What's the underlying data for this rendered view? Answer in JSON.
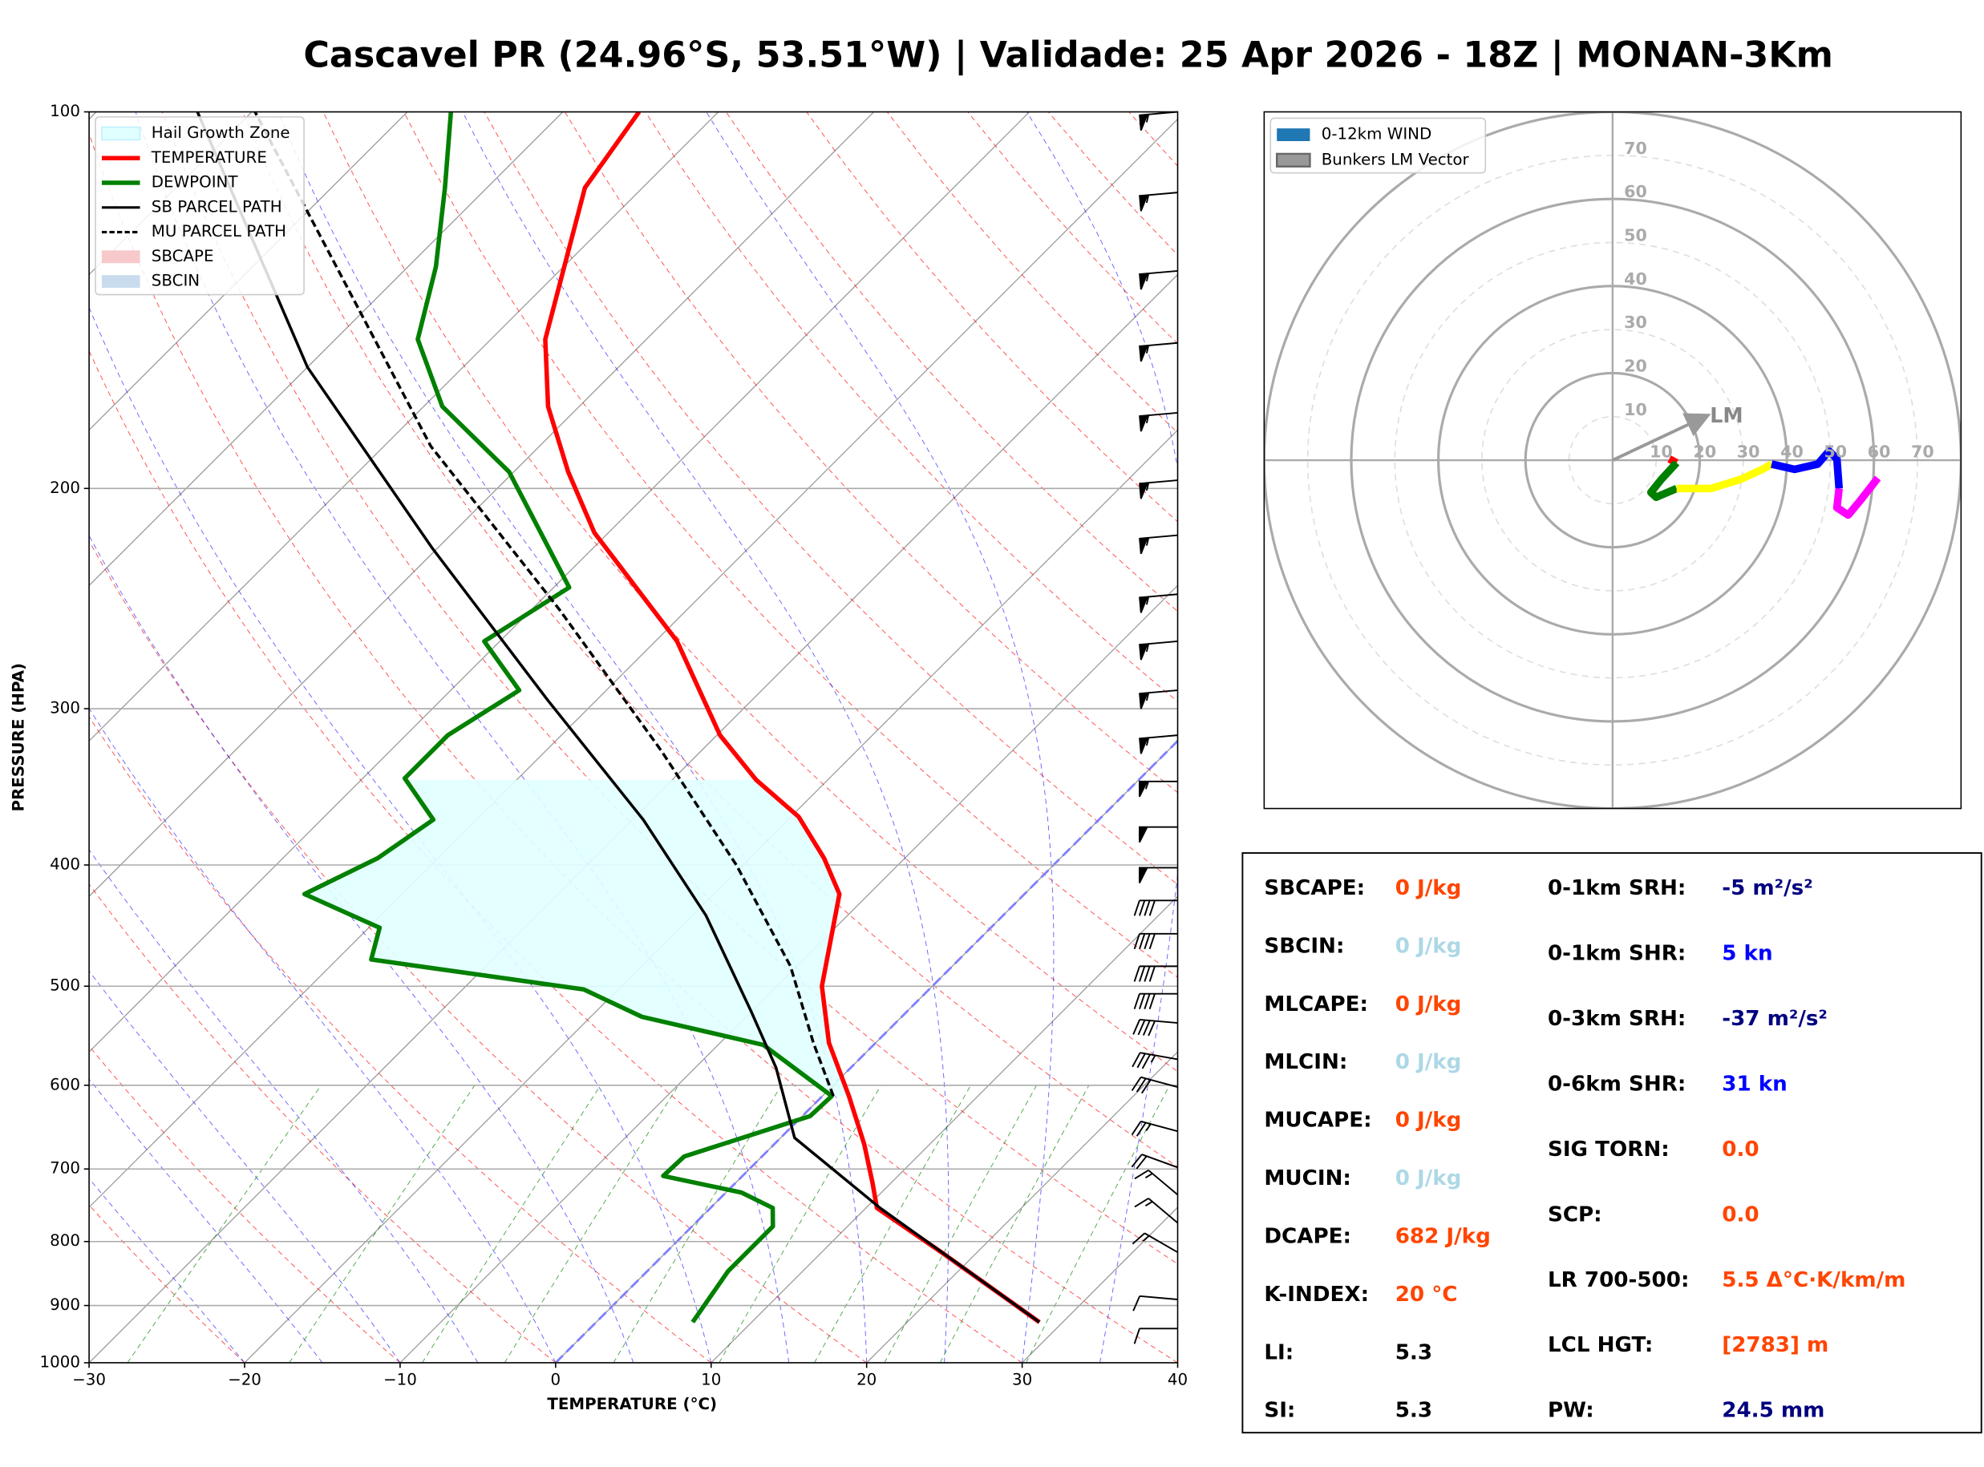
{
  "title": "Cascavel PR (24.96°S, 53.51°W) | Validade: 25 Apr 2026 - 18Z | MONAN-3Km",
  "chart_data": [
    {
      "type": "skewt",
      "xlabel": "TEMPERATURE (°C)",
      "ylabel": "PRESSURE (HPA)",
      "xlim": [
        -30,
        40
      ],
      "ylim": [
        1000,
        100
      ],
      "log_y": true,
      "grid": true,
      "legend": "upper left",
      "xticks": [
        {
          "value": -30,
          "label": "−30"
        },
        {
          "value": -20,
          "label": "−20"
        },
        {
          "value": -10,
          "label": "−10"
        },
        0,
        10,
        20,
        30,
        40
      ],
      "yticks": [
        100,
        200,
        300,
        400,
        500,
        600,
        700,
        800,
        900,
        1000
      ],
      "fills": [
        {
          "name": "Hail Growth Zone",
          "color": "#e0ffff",
          "p_range": [
            612,
            342
          ]
        },
        {
          "name": "SBCAPE",
          "color": "#f7c9cb"
        },
        {
          "name": "SBCIN",
          "color": "#c9dcee"
        }
      ],
      "series": [
        {
          "name": "TEMPERATURE",
          "color": "#ff0000",
          "style": "solid",
          "pressure": [
            928,
            816,
            752,
            718,
            669,
            612,
            555,
            500,
            422,
            395,
            366,
            342,
            315,
            265,
            217,
            194,
            172,
            152,
            115,
            100
          ],
          "values": [
            28.5,
            17.7,
            10.7,
            8.8,
            5.8,
            1.7,
            -3.0,
            -7.1,
            -11.9,
            -15.2,
            -19.5,
            -24.6,
            -29.8,
            -38.6,
            -50.9,
            -56.5,
            -62.0,
            -66.5,
            -73.7,
            -75.1
          ]
        },
        {
          "name": "DEWPOINT",
          "color": "#008000",
          "style": "solid",
          "pressure": [
            928,
            845,
            778,
            752,
            731,
            709,
            684,
            635,
            612,
            557,
            529,
            503,
            476,
            449,
            422,
            395,
            368,
            341,
            315,
            290,
            265,
            240,
            194,
            172,
            152,
            133,
            115,
            100
          ],
          "values": [
            6.2,
            5.2,
            5.2,
            4.0,
            1.0,
            -5.1,
            -5.0,
            0.5,
            0.6,
            -7.1,
            -16.7,
            -22.2,
            -37.8,
            -39.3,
            -46.3,
            -43.9,
            -42.8,
            -47.3,
            -47.3,
            -45.6,
            -51.0,
            -49.0,
            -60.3,
            -68.8,
            -74.7,
            -78.2,
            -82.7,
            -87.2
          ]
        },
        {
          "name": "SB PARCEL PATH",
          "color": "#000000",
          "style": "solid",
          "pressure": [
            928,
            752,
            661,
            581,
            523,
            439,
            368,
            295,
            223,
            160,
            100
          ],
          "values": [
            28.5,
            10.9,
            0.9,
            -4.8,
            -10.1,
            -19.1,
            -29.3,
            -43.2,
            -60.4,
            -80.0,
            -103.5
          ]
        },
        {
          "name": "MU PARCEL PATH",
          "color": "#000000",
          "style": "dashed",
          "pressure": [
            612,
            555,
            482,
            400,
            324,
            250,
            185,
            100
          ],
          "values": [
            0.7,
            -4.0,
            -10.4,
            -20.4,
            -32.6,
            -48.2,
            -67.0,
            -99.8
          ]
        }
      ],
      "wind_barbs": {
        "pressure": [
          100,
          116,
          134,
          153,
          174,
          197,
          218,
          243,
          265,
          290,
          315,
          343,
          373,
          402,
          427,
          454,
          482,
          507,
          535,
          572,
          602,
          653,
          698,
          734,
          773,
          816,
          890,
          939
        ],
        "speed": [
          55,
          55,
          55,
          55,
          55,
          55,
          55,
          55,
          55,
          55,
          55,
          55,
          50,
          50,
          40,
          40,
          40,
          40,
          40,
          35,
          30,
          25,
          20,
          15,
          15,
          15,
          10,
          10
        ],
        "direction": [
          265,
          265,
          265,
          265,
          265,
          265,
          265,
          265,
          265,
          265,
          265,
          270,
          270,
          270,
          270,
          270,
          270,
          270,
          275,
          280,
          285,
          285,
          290,
          310,
          310,
          300,
          275,
          270
        ]
      }
    },
    {
      "type": "hodograph",
      "rlim": [
        0,
        80
      ],
      "rticks": [
        10,
        20,
        30,
        40,
        50,
        60,
        70
      ],
      "legend": {
        "position": "upper left",
        "entries": [
          {
            "name": "0-12km WIND",
            "color": "#1f77b4"
          },
          {
            "name": "Bunkers LM Vector",
            "color": "#999999"
          }
        ]
      },
      "segments": [
        {
          "color": "#ff0000",
          "u": [
            13.0,
            14.7
          ],
          "v": [
            0.3,
            -0.6
          ]
        },
        {
          "color": "#008000",
          "u": [
            14.7,
            11.2,
            8.8,
            10.0,
            14.7
          ],
          "v": [
            -0.6,
            -4.4,
            -7.4,
            -8.5,
            -6.5
          ]
        },
        {
          "color": "#ffff00",
          "u": [
            14.7,
            22.6,
            29.4,
            34.4,
            36.5
          ],
          "v": [
            -6.5,
            -6.5,
            -4.4,
            -2.1,
            -0.9
          ]
        },
        {
          "color": "#0000ff",
          "u": [
            36.5,
            41.8,
            47.1,
            49.7,
            51.5,
            52.0
          ],
          "v": [
            -0.9,
            -2.1,
            -0.9,
            2.1,
            0.3,
            -6.5
          ]
        },
        {
          "color": "#ff00ff",
          "u": [
            52.0,
            51.5,
            54.1,
            57.0,
            60.9
          ],
          "v": [
            -6.5,
            -10.9,
            -12.6,
            -9.1,
            -4.1
          ]
        }
      ],
      "lm": {
        "label": "LM",
        "u": 20.6,
        "v": 9.7,
        "color": "#999999"
      }
    }
  ],
  "parameters": {
    "left": [
      {
        "label": "SBCAPE:",
        "value": "0 J/kg",
        "color": "#ff4500"
      },
      {
        "label": "SBCIN:",
        "value": "0 J/kg",
        "color": "#add8e6"
      },
      {
        "label": "MLCAPE:",
        "value": "0 J/kg",
        "color": "#ff4500"
      },
      {
        "label": "MLCIN:",
        "value": "0 J/kg",
        "color": "#add8e6"
      },
      {
        "label": "MUCAPE:",
        "value": "0 J/kg",
        "color": "#ff4500"
      },
      {
        "label": "MUCIN:",
        "value": "0 J/kg",
        "color": "#add8e6"
      },
      {
        "label": "DCAPE:",
        "value": "682 J/kg",
        "color": "#ff4500"
      },
      {
        "label": "K-INDEX:",
        "value": "20 °C",
        "color": "#ff4500"
      },
      {
        "label": "LI:",
        "value": "5.3",
        "color": "#000000"
      },
      {
        "label": "SI:",
        "value": "5.3",
        "color": "#000000"
      }
    ],
    "right": [
      {
        "label": "0-1km SRH:",
        "value": "-5 m²/s²",
        "color": "#000080"
      },
      {
        "label": "0-1km SHR:",
        "value": "5 kn",
        "color": "#0000ff"
      },
      {
        "label": "0-3km SRH:",
        "value": "-37 m²/s²",
        "color": "#000080"
      },
      {
        "label": "0-6km SHR:",
        "value": "31 kn",
        "color": "#0000ff"
      },
      {
        "label": "SIG TORN:",
        "value": "0.0",
        "color": "#ff4500"
      },
      {
        "label": "SCP:",
        "value": "0.0",
        "color": "#ff4500"
      },
      {
        "label": "LR 700-500:",
        "value": "5.5 Δ°C·K/km/m",
        "color": "#ff4500"
      },
      {
        "label": "LCL HGT:",
        "value": "[2783] m",
        "color": "#ff4500"
      },
      {
        "label": "PW:",
        "value": "24.5 mm",
        "color": "#000080"
      }
    ]
  }
}
